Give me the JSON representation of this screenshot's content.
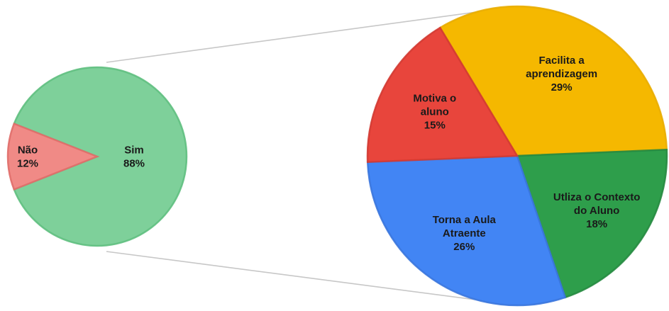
{
  "chart_data": [
    {
      "type": "pie",
      "slices": [
        {
          "label": [
            "Sim"
          ],
          "value": 88,
          "display": "88%",
          "color": "#7ed09a",
          "stroke": "#5fbf7f"
        },
        {
          "label": [
            "Não"
          ],
          "value": 12,
          "display": "12%",
          "color": "#f08a86",
          "stroke": "#e06d69"
        }
      ]
    },
    {
      "type": "pie",
      "slices": [
        {
          "label": [
            "Facilita a",
            "aprendizagem"
          ],
          "value": 29,
          "display": "29%",
          "color": "#f5b800",
          "stroke": "#e9ad00"
        },
        {
          "label": [
            "Utliza o Contexto",
            "do Aluno"
          ],
          "value": 18,
          "display": "18%",
          "color": "#2e9e4b",
          "stroke": "#268a40"
        },
        {
          "label": [
            "Torna a Aula",
            "Atraente"
          ],
          "value": 26,
          "display": "26%",
          "color": "#4285f4",
          "stroke": "#3a76dd"
        },
        {
          "label": [
            "Motiva o",
            "aluno"
          ],
          "value": 15,
          "display": "15%",
          "color": "#e8453c",
          "stroke": "#d33a32"
        }
      ]
    }
  ]
}
